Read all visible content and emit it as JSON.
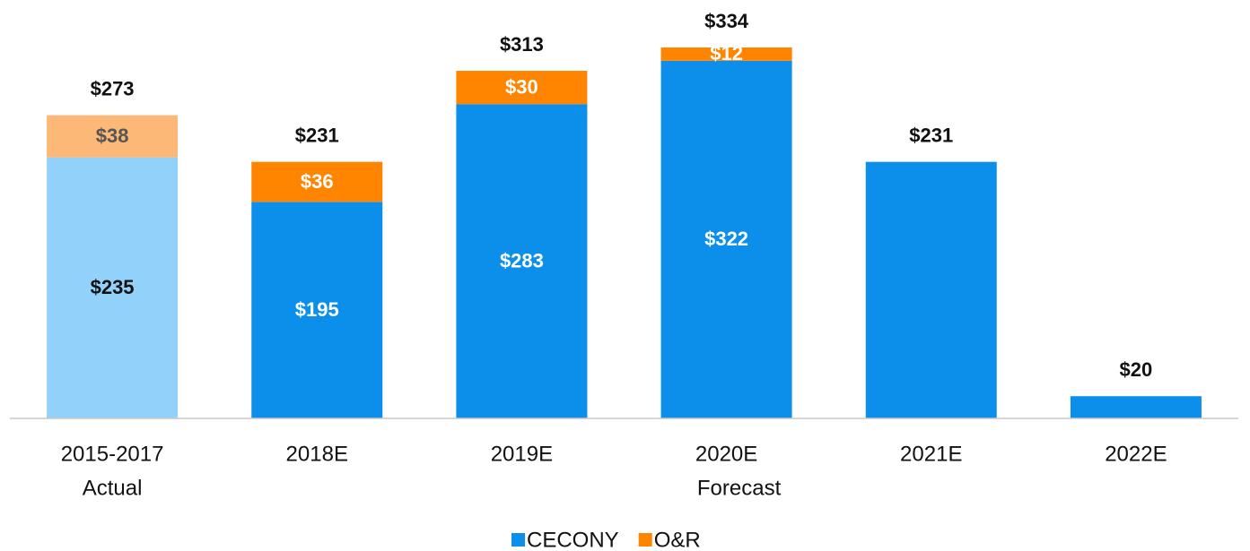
{
  "chart_data": {
    "type": "stacked_bar",
    "categories": [
      "2015-2017",
      "2018E",
      "2019E",
      "2020E",
      "2021E",
      "2022E"
    ],
    "group_labels": [
      {
        "label": "Actual",
        "from": 0,
        "to": 0
      },
      {
        "label": "Forecast",
        "from": 1,
        "to": 5
      }
    ],
    "series": [
      {
        "name": "CECONY",
        "color": "#0b8fea",
        "point_colors": [
          "#92d1fa",
          "#0b8fea",
          "#0b8fea",
          "#0b8fea",
          "#0b8fea",
          "#0b8fea"
        ],
        "label_colors": [
          "#111111",
          "#ffffff",
          "#ffffff",
          "#ffffff",
          "#ffffff",
          "#ffffff"
        ],
        "values": [
          235,
          195,
          283,
          322,
          231,
          20
        ],
        "value_labels": [
          "$235",
          "$195",
          "$283",
          "$322",
          null,
          null
        ]
      },
      {
        "name": "O&R",
        "color": "#ff8500",
        "point_colors": [
          "#fbb877",
          "#ff8500",
          "#ff8500",
          "#ff8500",
          "#ff8500",
          "#ff8500"
        ],
        "label_colors": [
          "#555555",
          "#ffffff",
          "#ffffff",
          "#ffffff",
          "#ffffff",
          "#ffffff"
        ],
        "values": [
          38,
          36,
          30,
          12,
          null,
          null
        ],
        "value_labels": [
          "$38",
          "$36",
          "$30",
          "$12",
          null,
          null
        ]
      }
    ],
    "totals": [
      273,
      231,
      313,
      334,
      231,
      20
    ],
    "total_labels": [
      "$273",
      "$231",
      "$313",
      "$334",
      "$231",
      "$20"
    ],
    "legend": "bottom"
  }
}
